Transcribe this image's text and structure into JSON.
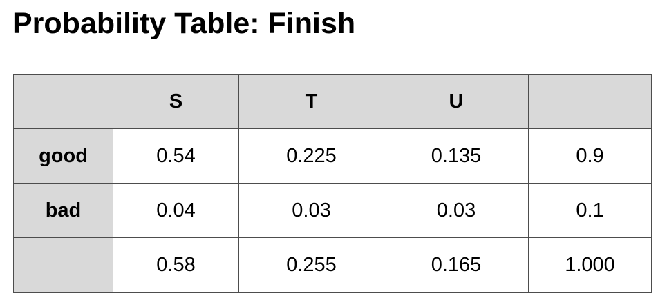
{
  "title": "Probability Table: Finish",
  "table": {
    "corner": "",
    "columns": [
      "S",
      "T",
      "U",
      ""
    ],
    "rows": [
      {
        "label": "good",
        "cells": [
          "0.54",
          "0.225",
          "0.135",
          "0.9"
        ]
      },
      {
        "label": "bad",
        "cells": [
          "0.04",
          "0.03",
          "0.03",
          "0.1"
        ]
      },
      {
        "label": "",
        "cells": [
          "0.58",
          "0.255",
          "0.165",
          "1.000"
        ]
      }
    ]
  },
  "colors": {
    "header_fill": "#d9d9d9",
    "border": "#4d4d4d",
    "cell_fill": "#ffffff"
  }
}
